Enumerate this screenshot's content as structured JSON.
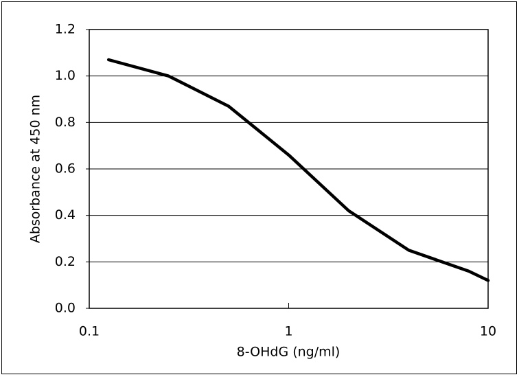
{
  "chart_data": {
    "type": "line",
    "xlabel": "8-OHdG (ng/ml)",
    "ylabel": "Absorbance at 450 nm",
    "x": [
      0.125,
      0.25,
      0.5,
      1,
      2,
      4,
      8,
      10
    ],
    "values": [
      1.07,
      1.0,
      0.87,
      0.66,
      0.42,
      0.25,
      0.16,
      0.12
    ],
    "color": "#000000",
    "xlim": [
      0.1,
      10
    ],
    "xticks": [
      0.1,
      1,
      10
    ],
    "xscale": "log",
    "ylim": [
      0,
      1.2
    ],
    "yticks": [
      {
        "value": 0,
        "label": "0.0"
      },
      0.2,
      0.4,
      0.6,
      0.8,
      {
        "value": 1,
        "label": "1.0"
      },
      1.2
    ],
    "grid": true
  }
}
